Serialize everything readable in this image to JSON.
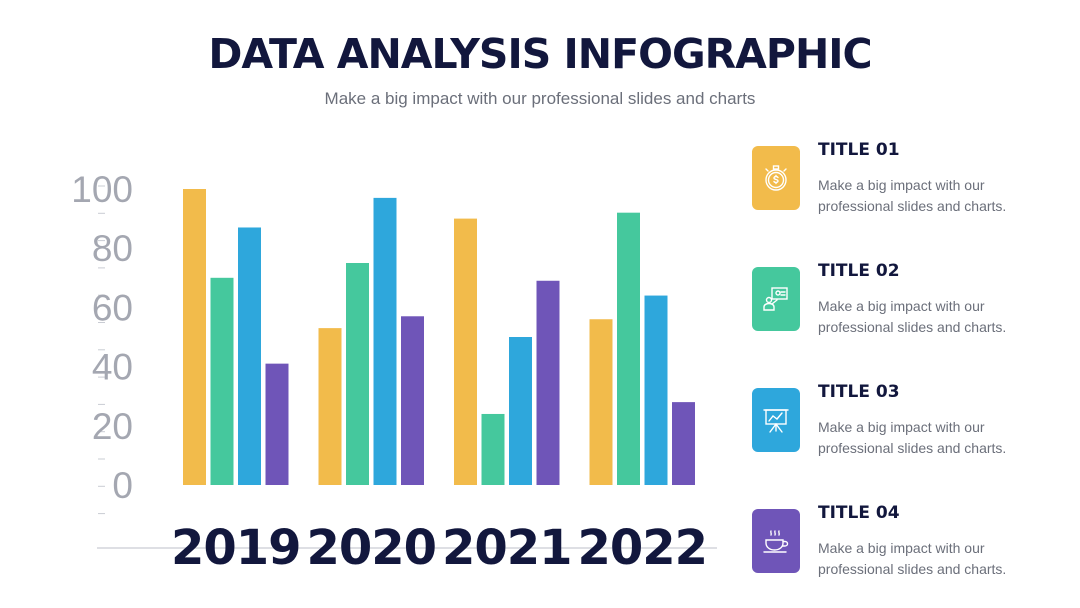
{
  "header": {
    "title": "DATA ANALYSIS INFOGRAPHIC",
    "subtitle": "Make a big impact with our professional slides and charts"
  },
  "colors": {
    "series": [
      "#f2bb4b",
      "#45c89d",
      "#2ea7dc",
      "#6f55b8"
    ],
    "title_text": "#12173d",
    "axis_text": "#a4a7b1"
  },
  "chart_data": {
    "type": "bar",
    "categories": [
      "2019",
      "2020",
      "2021",
      "2022"
    ],
    "series": [
      {
        "name": "TITLE 01",
        "values": [
          100,
          53,
          90,
          56
        ]
      },
      {
        "name": "TITLE 02",
        "values": [
          70,
          75,
          24,
          92
        ]
      },
      {
        "name": "TITLE 03",
        "values": [
          87,
          97,
          50,
          64
        ]
      },
      {
        "name": "TITLE 04",
        "values": [
          41,
          57,
          69,
          28
        ]
      }
    ],
    "y_ticks": [
      "0",
      "20",
      "40",
      "60",
      "80",
      "100"
    ],
    "ylim": [
      0,
      100
    ],
    "grid": false,
    "legend_position": "right"
  },
  "legend": {
    "items": [
      {
        "title": "TITLE 01",
        "description": "Make a big impact with our professional slides and charts.",
        "icon": "stopwatch-dollar-icon",
        "color": "#f2bb4b"
      },
      {
        "title": "TITLE 02",
        "description": "Make a big impact with our professional slides and charts.",
        "icon": "presentation-person-icon",
        "color": "#45c89d"
      },
      {
        "title": "TITLE 03",
        "description": "Make a big impact with our professional slides and charts.",
        "icon": "chart-easel-icon",
        "color": "#2ea7dc"
      },
      {
        "title": "TITLE 04",
        "description": "Make a big impact with our professional slides and charts.",
        "icon": "coffee-cup-icon",
        "color": "#6f55b8"
      }
    ]
  }
}
